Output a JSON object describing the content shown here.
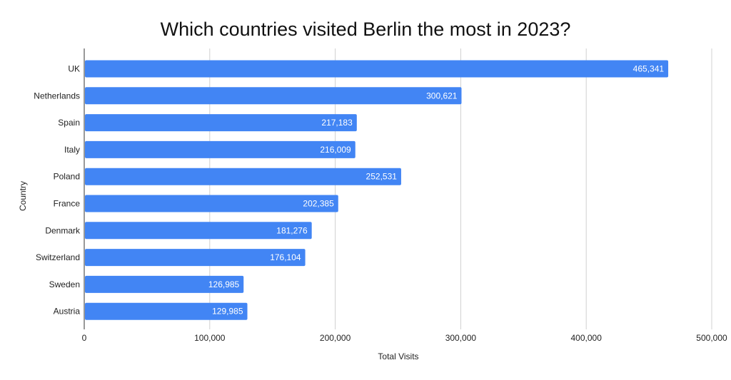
{
  "chart_data": {
    "type": "bar",
    "orientation": "horizontal",
    "title": "Which countries visited Berlin the most in 2023?",
    "xlabel": "Total Visits",
    "ylabel": "Country",
    "categories": [
      "UK",
      "Netherlands",
      "Spain",
      "Italy",
      "Poland",
      "France",
      "Denmark",
      "Switzerland",
      "Sweden",
      "Austria"
    ],
    "values": [
      465341,
      300621,
      217183,
      216009,
      252531,
      202385,
      181276,
      176104,
      126985,
      129985
    ],
    "data_labels": [
      "465,341",
      "300,621",
      "217,183",
      "216,009",
      "252,531",
      "202,385",
      "181,276",
      "176,104",
      "126,985",
      "129,985"
    ],
    "xlim": [
      0,
      500000
    ],
    "xticks": [
      0,
      100000,
      200000,
      300000,
      400000,
      500000
    ],
    "xtick_labels": [
      "0",
      "100,000",
      "200,000",
      "300,000",
      "400,000",
      "500,000"
    ],
    "grid": true,
    "legend": "none",
    "bar_color": "#4285f4"
  }
}
